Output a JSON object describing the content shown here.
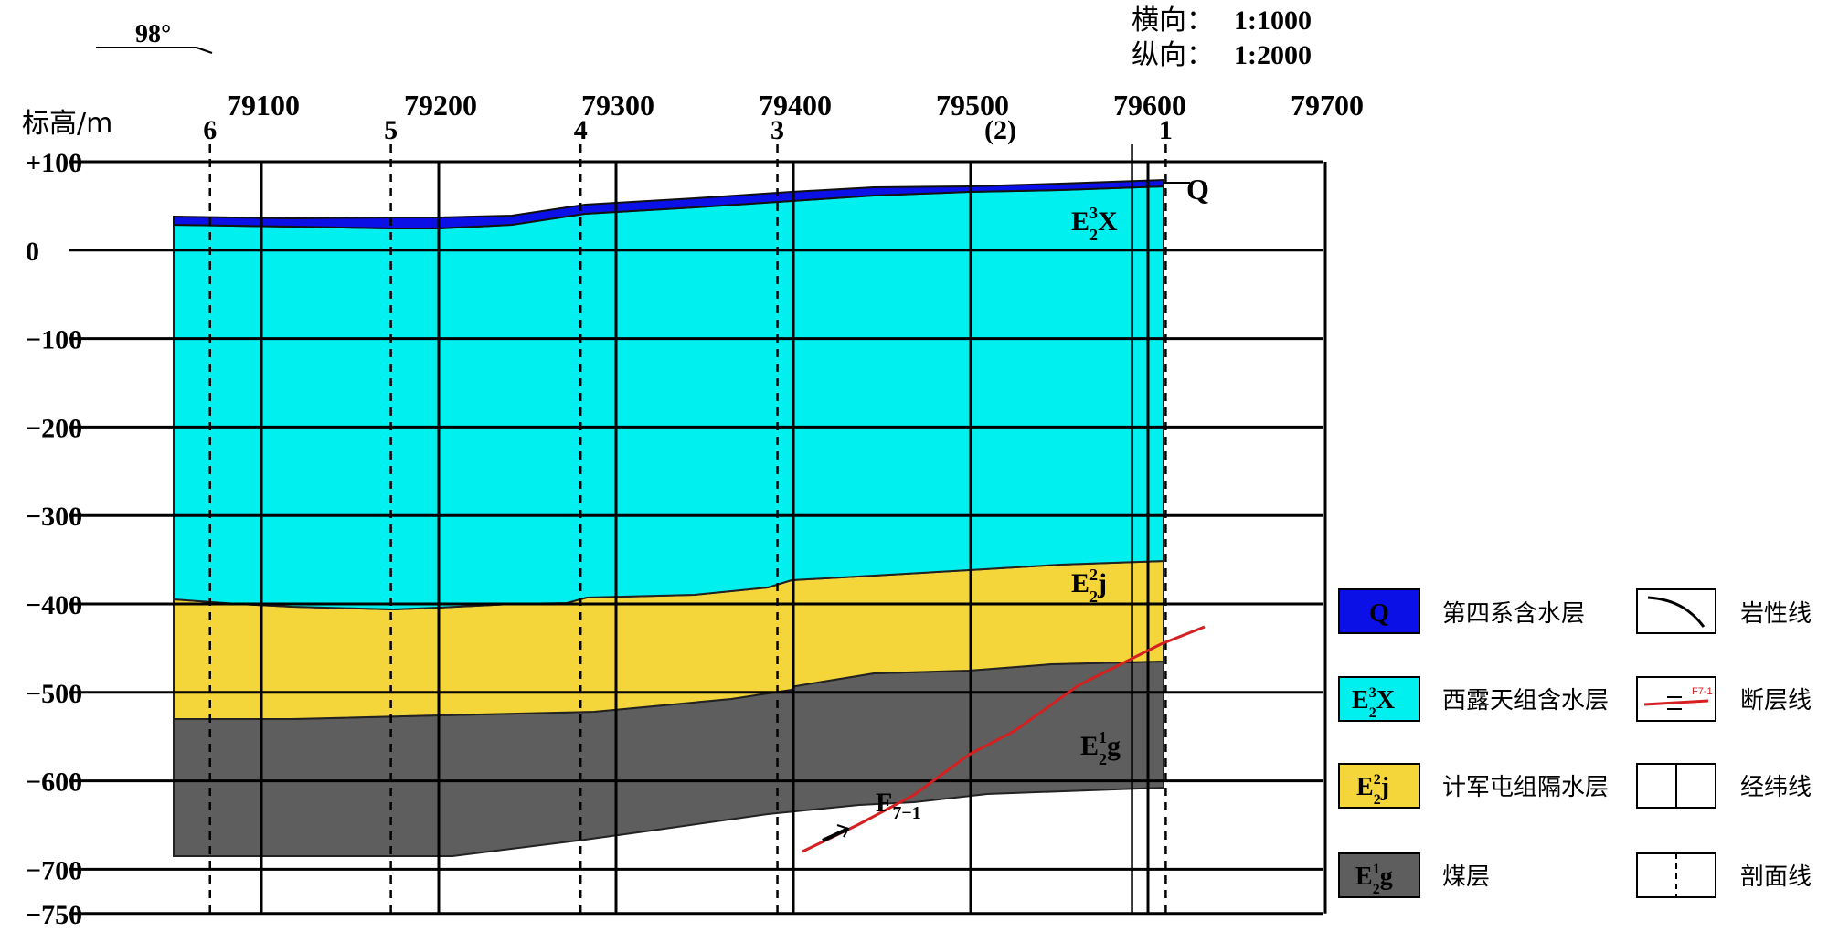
{
  "header": {
    "direction": "98°",
    "scale_horizontal_label": "横向：",
    "scale_horizontal_value": "1:1000",
    "scale_vertical_label": "纵向：",
    "scale_vertical_value": "1:2000"
  },
  "elevation_axis": {
    "title": "标高/m",
    "ticks": [
      {
        "value": 100,
        "label": "+100"
      },
      {
        "value": 0,
        "label": "0"
      },
      {
        "value": -100,
        "label": "−100"
      },
      {
        "value": -200,
        "label": "−200"
      },
      {
        "value": -300,
        "label": "−300"
      },
      {
        "value": -400,
        "label": "−400"
      },
      {
        "value": -500,
        "label": "−500"
      },
      {
        "value": -600,
        "label": "−600"
      },
      {
        "value": -700,
        "label": "−700"
      },
      {
        "value": -750,
        "label": "−750"
      }
    ]
  },
  "coordinate_lines": [
    {
      "value": 79100,
      "label": "79100"
    },
    {
      "value": 79200,
      "label": "79200"
    },
    {
      "value": 79300,
      "label": "79300"
    },
    {
      "value": 79400,
      "label": "79400"
    },
    {
      "value": 79500,
      "label": "79500"
    },
    {
      "value": 79600,
      "label": "79600"
    },
    {
      "value": 79700,
      "label": "79700"
    }
  ],
  "section_lines": [
    {
      "position": 79071,
      "label": "6"
    },
    {
      "position": 79173,
      "label": "5"
    },
    {
      "position": 79280,
      "label": "4"
    },
    {
      "position": 79391,
      "label": "3"
    },
    {
      "position": 79591,
      "label": ""
    },
    {
      "position": 79610,
      "label": "1"
    }
  ],
  "section_label_extra": "(2)",
  "layers": {
    "Q": {
      "color": "#0a10e6",
      "label_main": "Q"
    },
    "E32X": {
      "color": "#00f0f0",
      "label_main": "E",
      "label_sup": "3",
      "label_sub": "2",
      "label_tail": "X"
    },
    "E22j": {
      "color": "#f5d63a",
      "label_main": "E",
      "label_sup": "2",
      "label_sub": "2",
      "label_tail": "j"
    },
    "E12g": {
      "color": "#5e5e5e",
      "label_main": "E",
      "label_sup": "1",
      "label_sub": "2",
      "label_tail": "g"
    }
  },
  "fault": {
    "color": "#d42020",
    "label_main": "F",
    "label_sub": "7−1"
  },
  "legend": {
    "items": [
      {
        "swatch": "Q",
        "text": "第四系含水层"
      },
      {
        "swatch": "E32X",
        "text": "西露天组含水层"
      },
      {
        "swatch": "E22j",
        "text": "计军屯组隔水层"
      },
      {
        "swatch": "E12g",
        "text": "煤层"
      }
    ],
    "line_items": [
      {
        "type": "lithology",
        "text": "岩性线"
      },
      {
        "type": "fault",
        "text": "断层线",
        "symbol_label": "F7-1"
      },
      {
        "type": "grid",
        "text": "经纬线"
      },
      {
        "type": "section",
        "text": "剖面线"
      }
    ]
  }
}
